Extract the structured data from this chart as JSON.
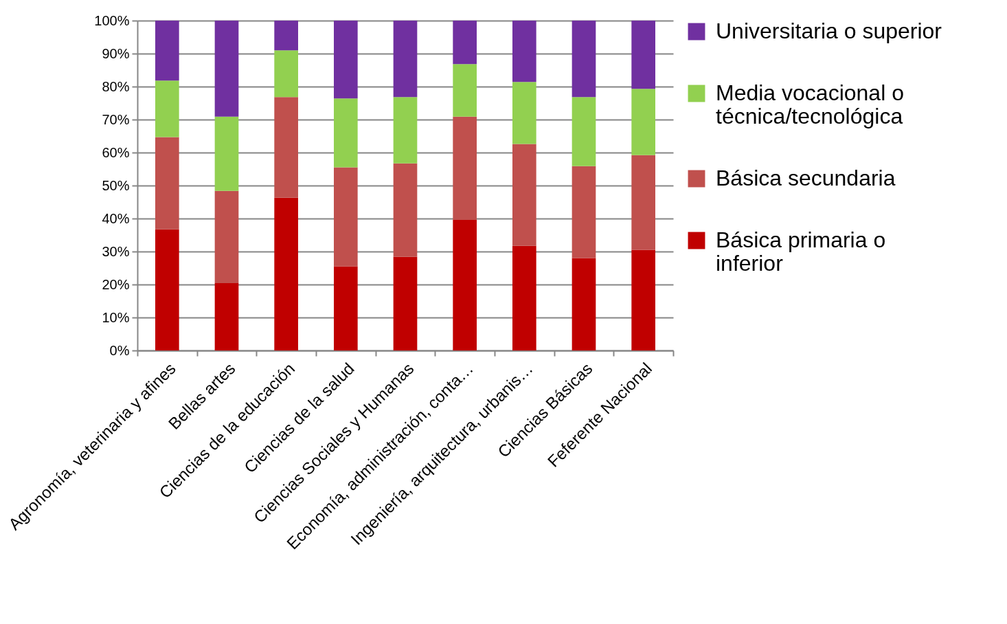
{
  "chart_data": {
    "type": "bar",
    "stacked": true,
    "categories": [
      "Agronomía, veterinaria y afines",
      "Bellas artes",
      "Ciencias de la educación",
      "Ciencias de la salud",
      "Ciencias Sociales y Humanas",
      "Economía, administración, conta…",
      "Ingeniería, arquitectura, urbanis…",
      "Ciencias Básicas",
      "Feferente Nacional"
    ],
    "series": [
      {
        "name": "Básica primaria o inferior",
        "color": "#c00000",
        "values": [
          36.7,
          20.4,
          46.3,
          25.5,
          28.4,
          39.6,
          31.7,
          28.0,
          30.5
        ]
      },
      {
        "name": "Básica secundaria",
        "color": "#c0504d",
        "values": [
          28.0,
          28.0,
          30.5,
          30.0,
          28.3,
          31.3,
          30.9,
          27.9,
          28.7
        ]
      },
      {
        "name": "Media vocacional o técnica/tecnológica",
        "color": "#92d050",
        "values": [
          17.1,
          22.5,
          14.2,
          20.9,
          20.1,
          15.9,
          18.8,
          20.9,
          20.1
        ]
      },
      {
        "name": "Universitaria o superior",
        "color": "#7030a0",
        "values": [
          18.2,
          29.1,
          9.0,
          23.6,
          23.2,
          13.2,
          18.6,
          23.2,
          20.7
        ]
      }
    ],
    "ylim": [
      0,
      100
    ],
    "yticks": [
      {
        "value": 0,
        "label": "0%"
      },
      {
        "value": 10,
        "label": "10%"
      },
      {
        "value": 20,
        "label": "20%"
      },
      {
        "value": 30,
        "label": "30%"
      },
      {
        "value": 40,
        "label": "40%"
      },
      {
        "value": 50,
        "label": "50%"
      },
      {
        "value": 60,
        "label": "60%"
      },
      {
        "value": 70,
        "label": "70%"
      },
      {
        "value": 80,
        "label": "80%"
      },
      {
        "value": 90,
        "label": "90%"
      },
      {
        "value": 100,
        "label": "100%"
      }
    ],
    "grid": "y",
    "legend": "right"
  }
}
